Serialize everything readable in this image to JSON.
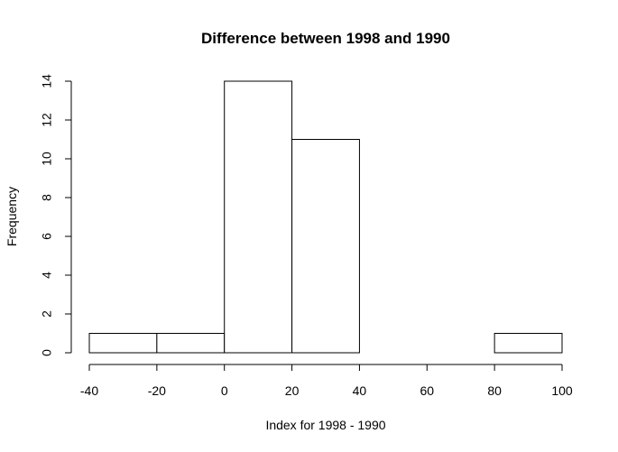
{
  "chart_data": {
    "type": "bar",
    "title": "Difference between 1998 and 1990",
    "xlabel": "Index for 1998 - 1990",
    "ylabel": "Frequency",
    "bins": [
      {
        "from": -40,
        "to": -20,
        "count": 1
      },
      {
        "from": -20,
        "to": 0,
        "count": 1
      },
      {
        "from": 0,
        "to": 20,
        "count": 14
      },
      {
        "from": 20,
        "to": 40,
        "count": 11
      },
      {
        "from": 40,
        "to": 60,
        "count": 0
      },
      {
        "from": 60,
        "to": 80,
        "count": 0
      },
      {
        "from": 80,
        "to": 100,
        "count": 1
      }
    ],
    "xlim": [
      -40,
      100
    ],
    "ylim": [
      0,
      14
    ],
    "xticks": [
      -40,
      -20,
      0,
      20,
      40,
      60,
      80,
      100
    ],
    "yticks": [
      0,
      2,
      4,
      6,
      8,
      10,
      12,
      14
    ],
    "grid": false
  }
}
